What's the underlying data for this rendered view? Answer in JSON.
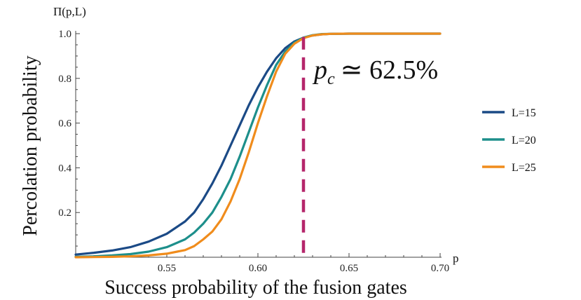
{
  "chart_data": {
    "type": "line",
    "title": "",
    "xlabel": "Success probability of the fusion gates",
    "ylabel": "Percolation probability",
    "x_corner_label": "p",
    "y_corner_label": "Π(p,L)",
    "xlim": [
      0.5,
      0.7
    ],
    "ylim": [
      0,
      1
    ],
    "xticks": [
      0.55,
      0.6,
      0.65,
      0.7
    ],
    "xtick_labels": [
      "0.55",
      "0.60",
      "0.65",
      "0.70"
    ],
    "yticks": [
      0.2,
      0.4,
      0.6,
      0.8,
      1.0
    ],
    "ytick_labels": [
      "0.2",
      "0.4",
      "0.6",
      "0.8",
      "1.0"
    ],
    "grid": false,
    "legend_position": "right",
    "threshold": {
      "x": 0.625,
      "label_main": "p",
      "label_sub": "c",
      "label_rest": "≃ 62.5%",
      "color": "#b5266b"
    },
    "x": [
      0.5,
      0.51,
      0.52,
      0.53,
      0.54,
      0.55,
      0.56,
      0.565,
      0.57,
      0.575,
      0.58,
      0.585,
      0.59,
      0.595,
      0.6,
      0.605,
      0.61,
      0.615,
      0.62,
      0.625,
      0.63,
      0.635,
      0.64,
      0.65,
      0.66,
      0.67,
      0.68,
      0.69,
      0.7
    ],
    "series": [
      {
        "name": "L=15",
        "color": "#1b4a86",
        "values": [
          0.012,
          0.02,
          0.03,
          0.045,
          0.07,
          0.105,
          0.16,
          0.2,
          0.26,
          0.33,
          0.41,
          0.5,
          0.59,
          0.68,
          0.76,
          0.83,
          0.89,
          0.935,
          0.965,
          0.982,
          0.992,
          0.997,
          0.999,
          1.0,
          1.0,
          1.0,
          1.0,
          1.0,
          1.0
        ]
      },
      {
        "name": "L=20",
        "color": "#1d8f8b",
        "values": [
          0.002,
          0.004,
          0.008,
          0.014,
          0.025,
          0.045,
          0.08,
          0.11,
          0.15,
          0.2,
          0.27,
          0.35,
          0.45,
          0.56,
          0.67,
          0.77,
          0.86,
          0.92,
          0.96,
          0.982,
          0.993,
          0.998,
          0.999,
          1.0,
          1.0,
          1.0,
          1.0,
          1.0,
          1.0
        ]
      },
      {
        "name": "L=25",
        "color": "#f08c1c",
        "values": [
          0.0,
          0.001,
          0.002,
          0.004,
          0.008,
          0.016,
          0.032,
          0.05,
          0.08,
          0.115,
          0.17,
          0.25,
          0.35,
          0.47,
          0.6,
          0.72,
          0.83,
          0.91,
          0.955,
          0.98,
          0.992,
          0.997,
          0.999,
          1.0,
          1.0,
          1.0,
          1.0,
          1.0,
          1.0
        ]
      }
    ]
  }
}
